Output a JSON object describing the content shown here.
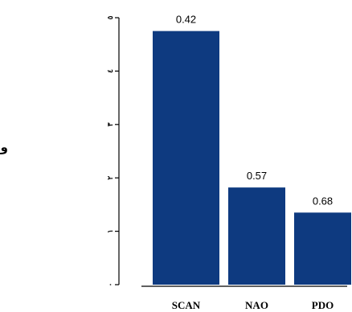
{
  "chart_data": {
    "type": "bar",
    "title": "",
    "xlabel": "",
    "ylabel": "واریانس",
    "ylim": [
      0,
      5
    ],
    "yticks": [
      0,
      1,
      2,
      3,
      4,
      5
    ],
    "ytick_labels": [
      "٠",
      "١",
      "٢",
      "٣",
      "٤",
      "٥"
    ],
    "categories": [
      "SCAN",
      "NAO",
      "PDO"
    ],
    "values": [
      4.75,
      1.82,
      1.35
    ],
    "data_labels": [
      "0.42",
      "0.57",
      "0.68"
    ],
    "bar_color": "#0e3a80",
    "grid": false,
    "legend": "none"
  }
}
